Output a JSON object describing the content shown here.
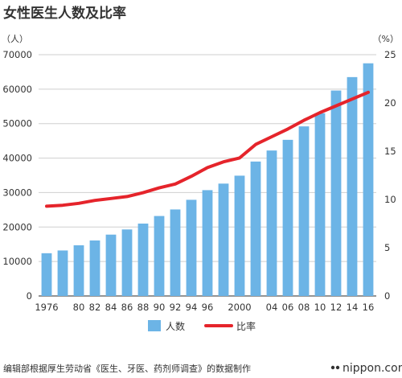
{
  "chart_data": {
    "type": "bar",
    "title": "女性医生人数及比率",
    "left_unit": "（人）",
    "right_unit": "（%）",
    "x": [
      1976,
      1978,
      1980,
      1982,
      1984,
      1986,
      1988,
      1990,
      1992,
      1994,
      1996,
      1998,
      2000,
      2002,
      2004,
      2006,
      2008,
      2010,
      2012,
      2014,
      2016
    ],
    "x_tick_labels": [
      "1976",
      "",
      "80",
      "82",
      "84",
      "86",
      "88",
      "90",
      "92",
      "94",
      "96",
      "",
      "2000",
      "",
      "04",
      "06",
      "08",
      "10",
      "12",
      "14",
      "16"
    ],
    "ylim_left": [
      0,
      70000
    ],
    "yticks_left": [
      "0",
      "10000",
      "20000",
      "30000",
      "40000",
      "50000",
      "60000",
      "70000"
    ],
    "ylim_right": [
      0,
      25
    ],
    "yticks_right": [
      "0",
      "5",
      "10",
      "15",
      "20",
      "25"
    ],
    "grid": true,
    "legend_position": "bottom",
    "series": [
      {
        "name": "人数",
        "type": "bar",
        "axis": "left",
        "color": "#6cb4e6",
        "values": [
          12400,
          13200,
          14700,
          16100,
          17800,
          19300,
          21000,
          23200,
          25100,
          27900,
          30700,
          32600,
          34900,
          39000,
          42200,
          45300,
          49200,
          53000,
          59600,
          63500,
          67500
        ]
      },
      {
        "name": "比率",
        "type": "line",
        "axis": "right",
        "color": "#e5242b",
        "values": [
          9.3,
          9.4,
          9.6,
          9.9,
          10.1,
          10.3,
          10.7,
          11.2,
          11.6,
          12.4,
          13.3,
          13.9,
          14.3,
          15.7,
          16.5,
          17.3,
          18.2,
          19.0,
          19.7,
          20.4,
          21.1
        ]
      }
    ]
  },
  "source": "编辑部根据厚生劳动省《医生、牙医、药剂师调查》的数据制作",
  "brand": "nippon.com"
}
